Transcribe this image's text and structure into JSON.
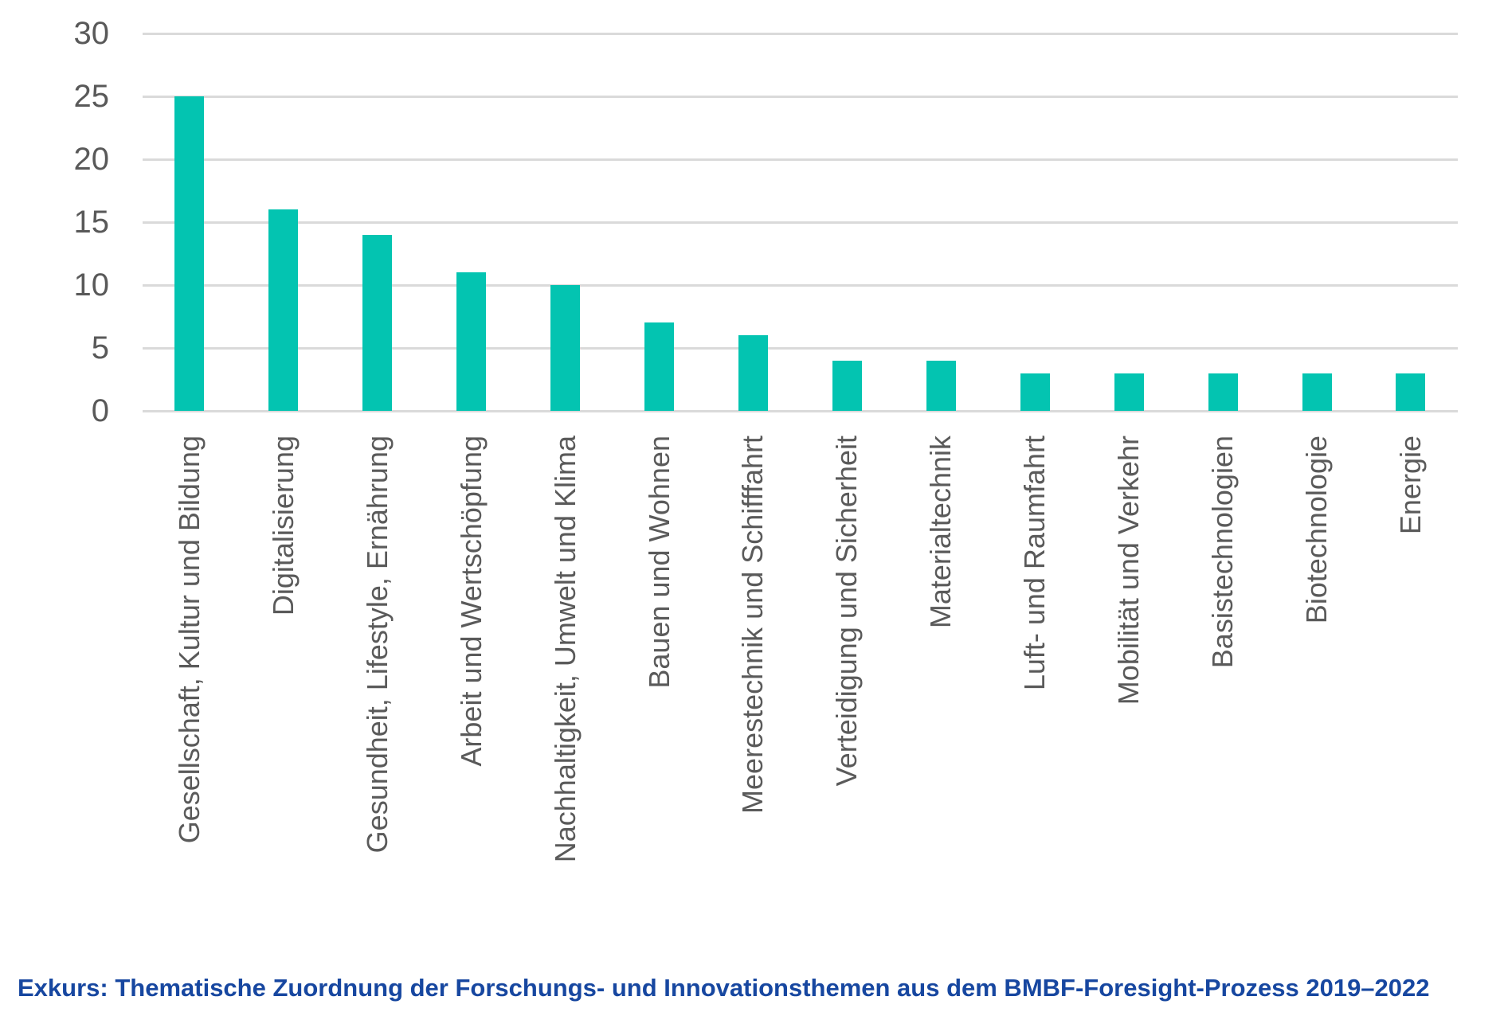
{
  "chart_data": {
    "type": "bar",
    "title": "",
    "categories": [
      "Gesellschaft, Kultur und Bildung",
      "Digitalisierung",
      "Gesundheit, Lifestyle, Ernährung",
      "Arbeit und Wertschöpfung",
      "Nachhaltigkeit, Umwelt und Klima",
      "Bauen und Wohnen",
      "Meerestechnik und Schifffahrt",
      "Verteidigung und Sicherheit",
      "Materialtechnik",
      "Luft- und Raumfahrt",
      "Mobilität und Verkehr",
      "Basistechnologien",
      "Biotechnologie",
      "Energie"
    ],
    "values": [
      25,
      16,
      14,
      11,
      10,
      7,
      6,
      4,
      4,
      3,
      3,
      3,
      3,
      3
    ],
    "xlabel": "",
    "ylabel": "",
    "y_ticks": [
      30,
      25,
      20,
      15,
      10,
      5,
      0
    ],
    "ylim": [
      0,
      30
    ],
    "grid": "horizontal",
    "legend_position": "none",
    "bar_color": "#03c4b1",
    "gridline_color": "#dadada",
    "axis_text_color": "#595959"
  },
  "caption": {
    "text": "Exkurs: Thematische Zuordnung der Forschungs- und Innovationsthemen aus dem BMBF-Foresight-Prozess 2019–2022",
    "color": "#1747a0"
  }
}
